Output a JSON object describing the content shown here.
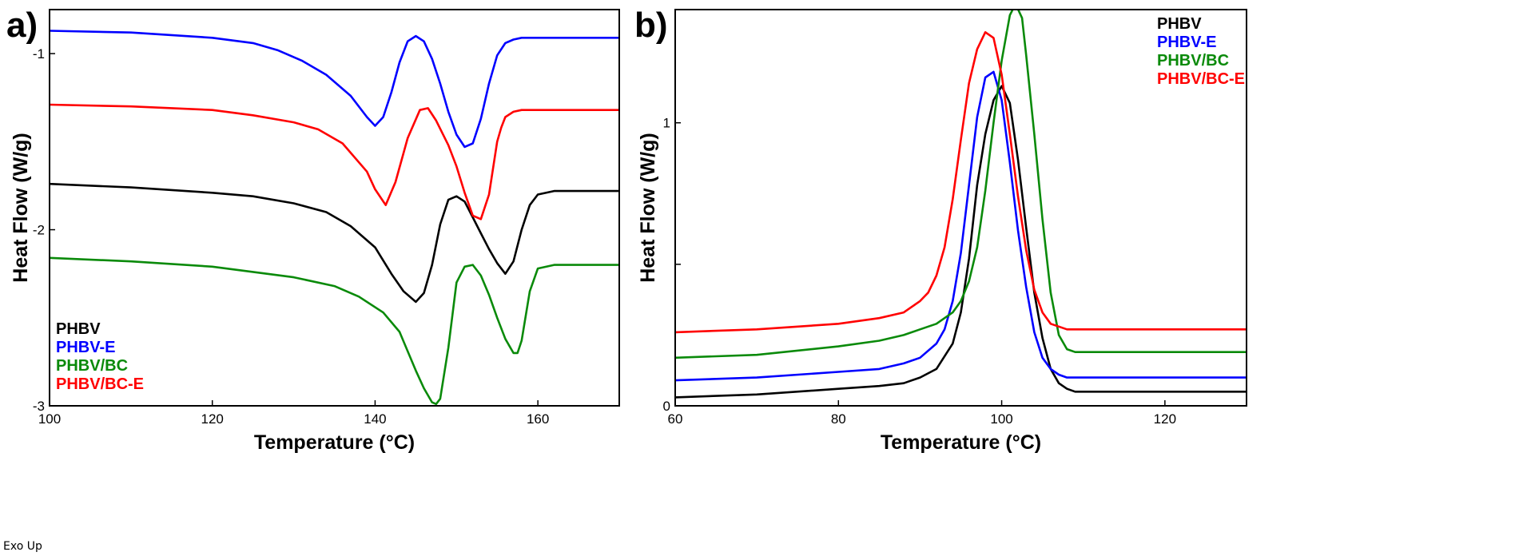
{
  "chart_data": [
    {
      "type": "line",
      "panel_label": "a)",
      "xlabel": "Temperature (°C)",
      "ylabel": "Heat Flow (W/g)",
      "xlim": [
        100,
        170
      ],
      "ylim": [
        -3.0,
        -0.75
      ],
      "xticks": [
        100,
        120,
        140,
        160
      ],
      "xtick_labels": [
        "100",
        "120",
        "140",
        "160"
      ],
      "yticks": [
        -3,
        -2,
        -1
      ],
      "ytick_labels": [
        "-3",
        "-2",
        "-1"
      ],
      "note": "Exo Up",
      "legend_position": "bottom-left",
      "series": [
        {
          "name": "PHBV",
          "color": "#000000",
          "x": [
            100,
            110,
            120,
            125,
            130,
            134,
            137,
            140,
            142,
            143.5,
            145,
            146,
            147,
            148,
            149,
            150,
            151,
            152,
            153,
            154,
            155,
            156,
            157,
            158,
            159,
            160,
            162,
            165,
            170
          ],
          "y": [
            -1.74,
            -1.76,
            -1.79,
            -1.81,
            -1.85,
            -1.9,
            -1.98,
            -2.1,
            -2.25,
            -2.35,
            -2.41,
            -2.36,
            -2.2,
            -1.97,
            -1.83,
            -1.81,
            -1.84,
            -1.93,
            -2.02,
            -2.11,
            -2.19,
            -2.25,
            -2.18,
            -2.0,
            -1.86,
            -1.8,
            -1.78,
            -1.78,
            -1.78
          ]
        },
        {
          "name": "PHBV-E",
          "color": "#0000FF",
          "x": [
            100,
            110,
            120,
            125,
            128,
            131,
            134,
            137,
            139,
            140,
            141,
            142,
            143,
            144,
            145,
            146,
            147,
            148,
            149,
            150,
            151,
            152,
            153,
            154,
            155,
            156,
            157,
            158,
            160,
            165,
            170
          ],
          "y": [
            -0.87,
            -0.88,
            -0.91,
            -0.94,
            -0.98,
            -1.04,
            -1.12,
            -1.24,
            -1.36,
            -1.41,
            -1.36,
            -1.22,
            -1.05,
            -0.93,
            -0.9,
            -0.93,
            -1.03,
            -1.17,
            -1.33,
            -1.46,
            -1.53,
            -1.51,
            -1.37,
            -1.17,
            -1.01,
            -0.94,
            -0.92,
            -0.91,
            -0.91,
            -0.91,
            -0.91
          ]
        },
        {
          "name": "PHBV/BC",
          "color": "#0A8A0A",
          "x": [
            100,
            110,
            120,
            130,
            135,
            138,
            141,
            143,
            145,
            146,
            147,
            147.5,
            148,
            149,
            150,
            151,
            152,
            153,
            154,
            155,
            156,
            157,
            157.5,
            158,
            159,
            160,
            162,
            165,
            170
          ],
          "y": [
            -2.16,
            -2.18,
            -2.21,
            -2.27,
            -2.32,
            -2.38,
            -2.47,
            -2.58,
            -2.8,
            -2.9,
            -2.98,
            -2.99,
            -2.96,
            -2.67,
            -2.3,
            -2.21,
            -2.2,
            -2.26,
            -2.37,
            -2.5,
            -2.62,
            -2.7,
            -2.7,
            -2.63,
            -2.35,
            -2.22,
            -2.2,
            -2.2,
            -2.2
          ]
        },
        {
          "name": "PHBV/BC-E",
          "color": "#FF0000",
          "x": [
            100,
            110,
            120,
            125,
            130,
            133,
            136,
            139,
            140,
            141.3,
            142.5,
            144,
            145.5,
            146.5,
            147.5,
            149,
            150,
            151,
            152,
            153,
            154,
            155,
            155.5,
            156,
            157,
            158,
            160,
            165,
            170
          ],
          "y": [
            -1.29,
            -1.3,
            -1.32,
            -1.35,
            -1.39,
            -1.43,
            -1.51,
            -1.67,
            -1.77,
            -1.86,
            -1.73,
            -1.48,
            -1.32,
            -1.31,
            -1.38,
            -1.52,
            -1.64,
            -1.79,
            -1.92,
            -1.94,
            -1.8,
            -1.5,
            -1.42,
            -1.36,
            -1.33,
            -1.32,
            -1.32,
            -1.32,
            -1.32
          ]
        }
      ]
    },
    {
      "type": "line",
      "panel_label": "b)",
      "xlabel": "Temperature (°C)",
      "ylabel": "Heat Flow (W/g)",
      "xlim": [
        60,
        130
      ],
      "ylim": [
        0,
        1.4
      ],
      "xticks": [
        60,
        80,
        100,
        120
      ],
      "xtick_labels": [
        "60",
        "80",
        "100",
        "120"
      ],
      "yticks": [
        0,
        0.5,
        1.0
      ],
      "ytick_labels": [
        "0",
        "",
        "1"
      ],
      "legend_position": "top-right",
      "series": [
        {
          "name": "PHBV",
          "color": "#000000",
          "x": [
            60,
            70,
            80,
            85,
            88,
            90,
            92,
            94,
            95,
            96,
            97,
            98,
            99,
            100,
            101,
            102,
            103,
            104,
            105,
            106,
            107,
            108,
            109,
            110,
            112,
            115,
            130
          ],
          "y": [
            0.03,
            0.04,
            0.06,
            0.07,
            0.08,
            0.1,
            0.13,
            0.22,
            0.33,
            0.52,
            0.78,
            0.96,
            1.08,
            1.13,
            1.07,
            0.87,
            0.63,
            0.4,
            0.24,
            0.13,
            0.08,
            0.06,
            0.05,
            0.05,
            0.05,
            0.05,
            0.05
          ]
        },
        {
          "name": "PHBV-E",
          "color": "#0000FF",
          "x": [
            60,
            70,
            80,
            85,
            88,
            90,
            92,
            93,
            94,
            95,
            96,
            97,
            98,
            99,
            100,
            101,
            102,
            103,
            104,
            105,
            106,
            107,
            108,
            110,
            112,
            115,
            130
          ],
          "y": [
            0.09,
            0.1,
            0.12,
            0.13,
            0.15,
            0.17,
            0.22,
            0.27,
            0.37,
            0.54,
            0.78,
            1.02,
            1.16,
            1.18,
            1.08,
            0.86,
            0.62,
            0.42,
            0.26,
            0.17,
            0.13,
            0.11,
            0.1,
            0.1,
            0.1,
            0.1,
            0.1
          ]
        },
        {
          "name": "PHBV/BC",
          "color": "#0A8A0A",
          "x": [
            60,
            70,
            80,
            85,
            88,
            90,
            92,
            94,
            95,
            96,
            97,
            98,
            99,
            100,
            101,
            101.7,
            102.5,
            103,
            104,
            105,
            106,
            107,
            108,
            109,
            110,
            112,
            115,
            130
          ],
          "y": [
            0.17,
            0.18,
            0.21,
            0.23,
            0.25,
            0.27,
            0.29,
            0.33,
            0.37,
            0.44,
            0.56,
            0.76,
            1.0,
            1.22,
            1.38,
            1.42,
            1.37,
            1.24,
            0.96,
            0.66,
            0.4,
            0.25,
            0.2,
            0.19,
            0.19,
            0.19,
            0.19,
            0.19
          ]
        },
        {
          "name": "PHBV/BC-E",
          "color": "#FF0000",
          "x": [
            60,
            70,
            80,
            85,
            88,
            90,
            91,
            92,
            93,
            94,
            95,
            96,
            97,
            98,
            99,
            100,
            101,
            102,
            103,
            104,
            105,
            106,
            107,
            108,
            110,
            115,
            130
          ],
          "y": [
            0.26,
            0.27,
            0.29,
            0.31,
            0.33,
            0.37,
            0.4,
            0.46,
            0.56,
            0.73,
            0.94,
            1.14,
            1.26,
            1.32,
            1.3,
            1.17,
            0.96,
            0.74,
            0.55,
            0.41,
            0.33,
            0.29,
            0.28,
            0.27,
            0.27,
            0.27,
            0.27
          ]
        }
      ]
    }
  ]
}
